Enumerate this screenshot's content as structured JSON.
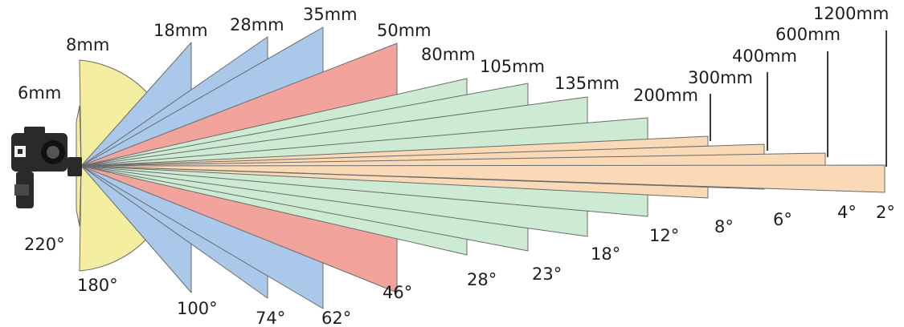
{
  "colors": {
    "ultra_wide": "#f3eea0",
    "wide": "#a9c8ea",
    "normal": "#f2a39b",
    "short_tele": "#cdebd3",
    "long_tele": "#f9d9b6"
  },
  "lenses": [
    {
      "focal": "6mm",
      "angle": "220°",
      "group": "ultra_wide"
    },
    {
      "focal": "8mm",
      "angle": "180°",
      "group": "ultra_wide"
    },
    {
      "focal": "18mm",
      "angle": "100°",
      "group": "wide"
    },
    {
      "focal": "28mm",
      "angle": "74°",
      "group": "wide"
    },
    {
      "focal": "35mm",
      "angle": "62°",
      "group": "wide"
    },
    {
      "focal": "50mm",
      "angle": "46°",
      "group": "normal"
    },
    {
      "focal": "80mm",
      "angle": "28°",
      "group": "short_tele"
    },
    {
      "focal": "105mm",
      "angle": "23°",
      "group": "short_tele"
    },
    {
      "focal": "135mm",
      "angle": "18°",
      "group": "short_tele"
    },
    {
      "focal": "200mm",
      "angle": "12°",
      "group": "short_tele"
    },
    {
      "focal": "300mm",
      "angle": "8°",
      "group": "long_tele"
    },
    {
      "focal": "400mm",
      "angle": "6°",
      "group": "long_tele"
    },
    {
      "focal": "600mm",
      "angle": "4°",
      "group": "long_tele"
    },
    {
      "focal": "1200mm",
      "angle": "2°",
      "group": "long_tele"
    }
  ],
  "camera_icon": "camera-icon"
}
